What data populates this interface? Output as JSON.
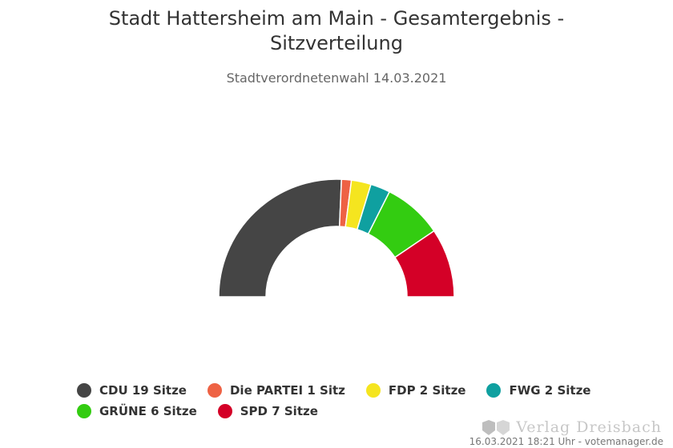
{
  "chart_data": {
    "type": "pie",
    "variant": "parliament-semicircle-donut",
    "title": "Stadt Hattersheim am Main - Gesamtergebnis - Sitzverteilung",
    "subtitle": "Stadtverordnetenwahl 14.03.2021",
    "unit": "Sitze",
    "total": 37,
    "series": [
      {
        "name": "CDU",
        "value": 19,
        "label": "CDU 19 Sitze",
        "color": "#454545"
      },
      {
        "name": "Die PARTEI",
        "value": 1,
        "label": "Die PARTEI 1 Sitz",
        "color": "#ee6244"
      },
      {
        "name": "FDP",
        "value": 2,
        "label": "FDP 2 Sitze",
        "color": "#f5e51f"
      },
      {
        "name": "FWG",
        "value": 2,
        "label": "FWG 2 Sitze",
        "color": "#0fa0a0"
      },
      {
        "name": "GRÜNE",
        "value": 6,
        "label": "GRÜNE 6 Sitze",
        "color": "#33cc11"
      },
      {
        "name": "SPD",
        "value": 7,
        "label": "SPD 7 Sitze",
        "color": "#d40027"
      }
    ],
    "legend": "bottom"
  },
  "credits": "16.03.2021 18:21 Uhr - votemanager.de",
  "watermark": "Verlag Dreisbach"
}
